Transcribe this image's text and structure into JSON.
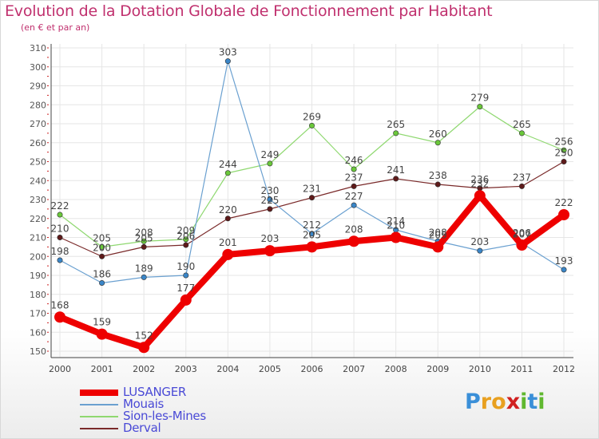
{
  "title": "Evolution de la Dotation Globale de Fonctionnement par Habitant",
  "subtitle": "(en € et par an)",
  "logo": {
    "letters": [
      {
        "ch": "P",
        "color": "#3a8fd8"
      },
      {
        "ch": "r",
        "color": "#e8a020"
      },
      {
        "ch": "o",
        "color": "#e8a020"
      },
      {
        "ch": "x",
        "color": "#d02020"
      },
      {
        "ch": "i",
        "color": "#60b830"
      },
      {
        "ch": "t",
        "color": "#3a8fd8"
      },
      {
        "ch": "i",
        "color": "#60b830"
      }
    ]
  },
  "chart_data": {
    "type": "line",
    "title": "Evolution de la Dotation Globale de Fonctionnement par Habitant",
    "subtitle": "(en € et par an)",
    "x": [
      "2000",
      "2001",
      "2002",
      "2003",
      "2004",
      "2005",
      "2006",
      "2007",
      "2008",
      "2009",
      "2010",
      "2011",
      "2012"
    ],
    "ylim": [
      150,
      310
    ],
    "yticks": [
      150,
      160,
      170,
      180,
      190,
      200,
      210,
      220,
      230,
      240,
      250,
      260,
      270,
      280,
      290,
      300,
      310
    ],
    "grid": true,
    "legend_position": "bottom-left",
    "series": [
      {
        "name": "Derval",
        "color": "#7a2a2a",
        "marker": "#5e1a1a",
        "width": 1.2,
        "values": [
          210,
          200,
          205,
          206,
          220,
          225,
          231,
          237,
          241,
          238,
          236,
          237,
          250
        ],
        "labels": [
          "210",
          "200",
          "205",
          "206",
          "220",
          "225",
          "231",
          "237",
          "241",
          "238",
          "236",
          "237",
          "250"
        ]
      },
      {
        "name": "Sion-les-Mines",
        "color": "#8fd870",
        "marker": "#6ac83a",
        "width": 1.2,
        "values": [
          222,
          205,
          208,
          209,
          244,
          249,
          269,
          246,
          265,
          260,
          279,
          265,
          256
        ],
        "labels": [
          "222",
          "205",
          "208",
          "209",
          "244",
          "249",
          "269",
          "246",
          "265",
          "260",
          "279",
          "265",
          "256"
        ]
      },
      {
        "name": "Mouais",
        "color": "#6aa0d0",
        "marker": "#3a86c8",
        "width": 1.2,
        "values": [
          198,
          186,
          189,
          190,
          303,
          230,
          212,
          227,
          214,
          208,
          203,
          207,
          193
        ],
        "labels": [
          "198",
          "186",
          "189",
          "190",
          "303",
          "230",
          "212",
          "227",
          "214",
          "208",
          "203",
          "207",
          "193"
        ]
      },
      {
        "name": "LUSANGER",
        "color": "#ee0000",
        "marker": "#ee0000",
        "width": 8,
        "values": [
          168,
          159,
          152,
          177,
          201,
          203,
          205,
          208,
          210,
          205,
          232,
          206,
          222
        ],
        "labels": [
          "168",
          "159",
          "152",
          "177",
          "201",
          "203",
          "205",
          "208",
          "210",
          "205",
          "232",
          "206",
          "222"
        ]
      }
    ],
    "legend": [
      "LUSANGER",
      "Mouais",
      "Sion-les-Mines",
      "Derval"
    ]
  }
}
